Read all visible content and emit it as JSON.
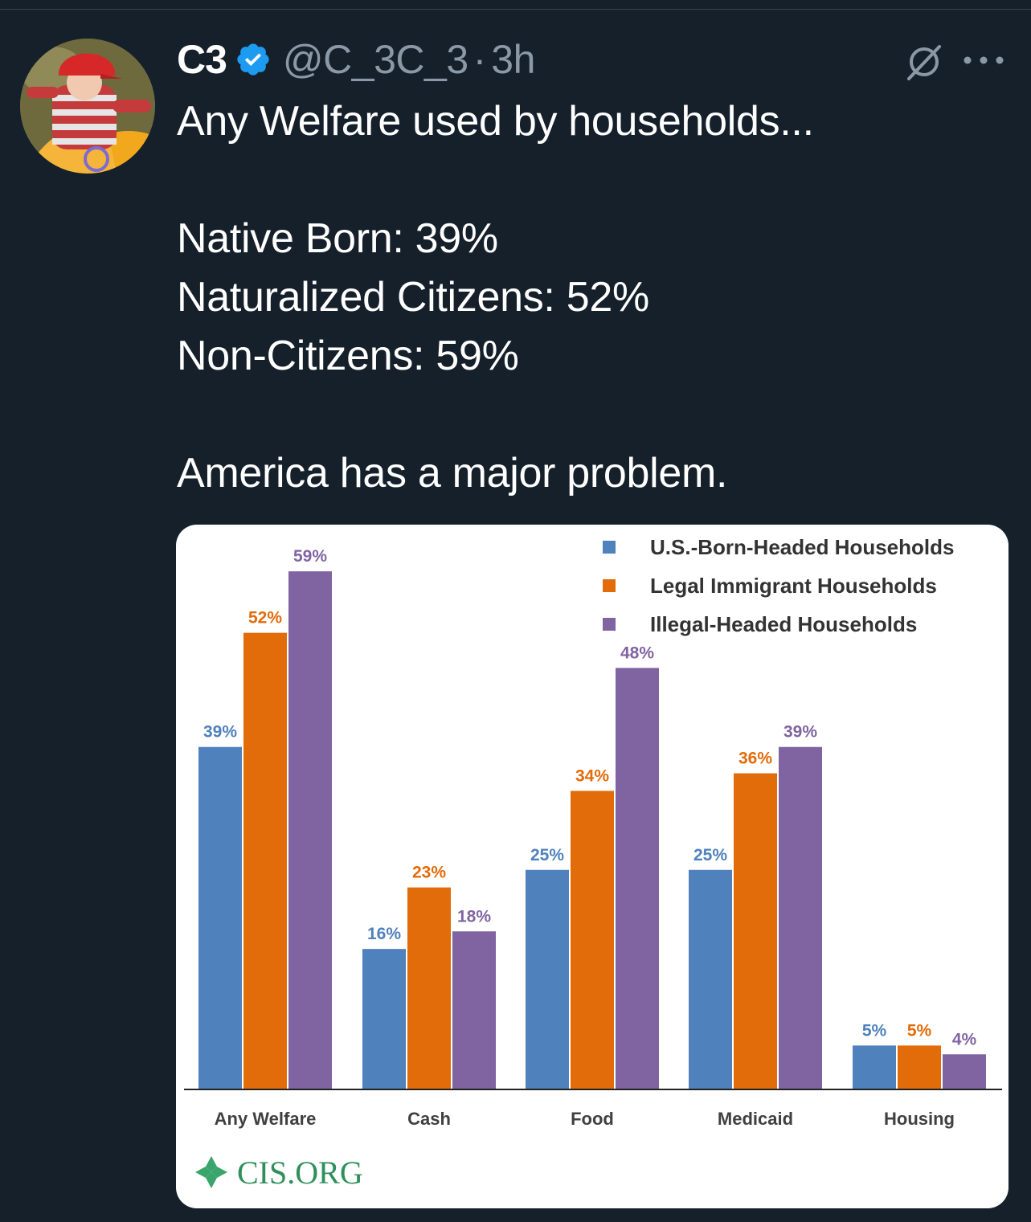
{
  "tweet": {
    "display_name": "C3",
    "handle": "@C_3C_3",
    "separator": "·",
    "time": "3h",
    "lines": [
      "Any Welfare used by households...",
      "",
      "Native Born: 39%",
      "Naturalized Citizens: 52%",
      "Non-Citizens: 59%",
      "",
      "America has a major problem."
    ]
  },
  "icons": {
    "verified": "verified-badge-icon",
    "grok": "grok-icon",
    "more": "more-options-icon"
  },
  "colors": {
    "background": "#15202b",
    "verified": "#1d9bf0",
    "secondary_text": "#8b98a5"
  },
  "chart_data": {
    "type": "bar",
    "categories": [
      "Any Welfare",
      "Cash",
      "Food",
      "Medicaid",
      "Housing"
    ],
    "series": [
      {
        "name": "U.S.-Born-Headed Households",
        "color": "#4f81bd",
        "values": [
          39,
          16,
          25,
          25,
          5
        ],
        "labels": [
          "39%",
          "16%",
          "25%",
          "25%",
          "5%"
        ]
      },
      {
        "name": "Legal Immigrant Households",
        "color": "#e36c0a",
        "values": [
          52,
          23,
          34,
          36,
          5
        ],
        "labels": [
          "52%",
          "23%",
          "34%",
          "36%",
          "5%"
        ]
      },
      {
        "name": "Illegal-Headed Households",
        "color": "#8064a2",
        "values": [
          59,
          18,
          48,
          39,
          4
        ],
        "labels": [
          "59%",
          "18%",
          "48%",
          "39%",
          "4%"
        ]
      }
    ],
    "ylim": [
      0,
      60
    ],
    "legend_position": "top-right",
    "grid": false,
    "source_logo_text": "CIS.ORG"
  }
}
